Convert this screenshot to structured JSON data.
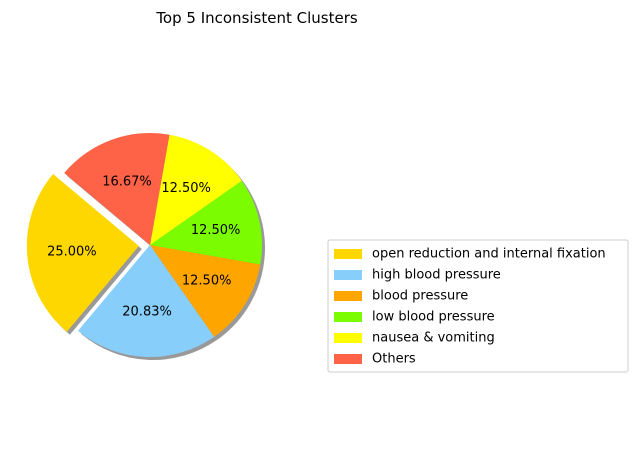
{
  "chart_data": {
    "type": "pie",
    "title": "Top 5 Inconsistent Clusters",
    "labels": [
      "open reduction and internal fixation",
      "high blood pressure",
      "blood pressure",
      "low blood pressure",
      "nausea & vomiting",
      "Others"
    ],
    "values": [
      25.0,
      20.83,
      12.5,
      12.5,
      12.5,
      16.67
    ],
    "value_labels": [
      "25.00%",
      "20.83%",
      "12.50%",
      "12.50%",
      "12.50%",
      "16.67%"
    ],
    "colors": [
      "#ffd700",
      "#87cefa",
      "#ffa500",
      "#7cfc00",
      "#ffff00",
      "#ff6347"
    ],
    "exploded_slice": "open reduction and internal fixation",
    "shadow": true,
    "legend_position": "right"
  }
}
